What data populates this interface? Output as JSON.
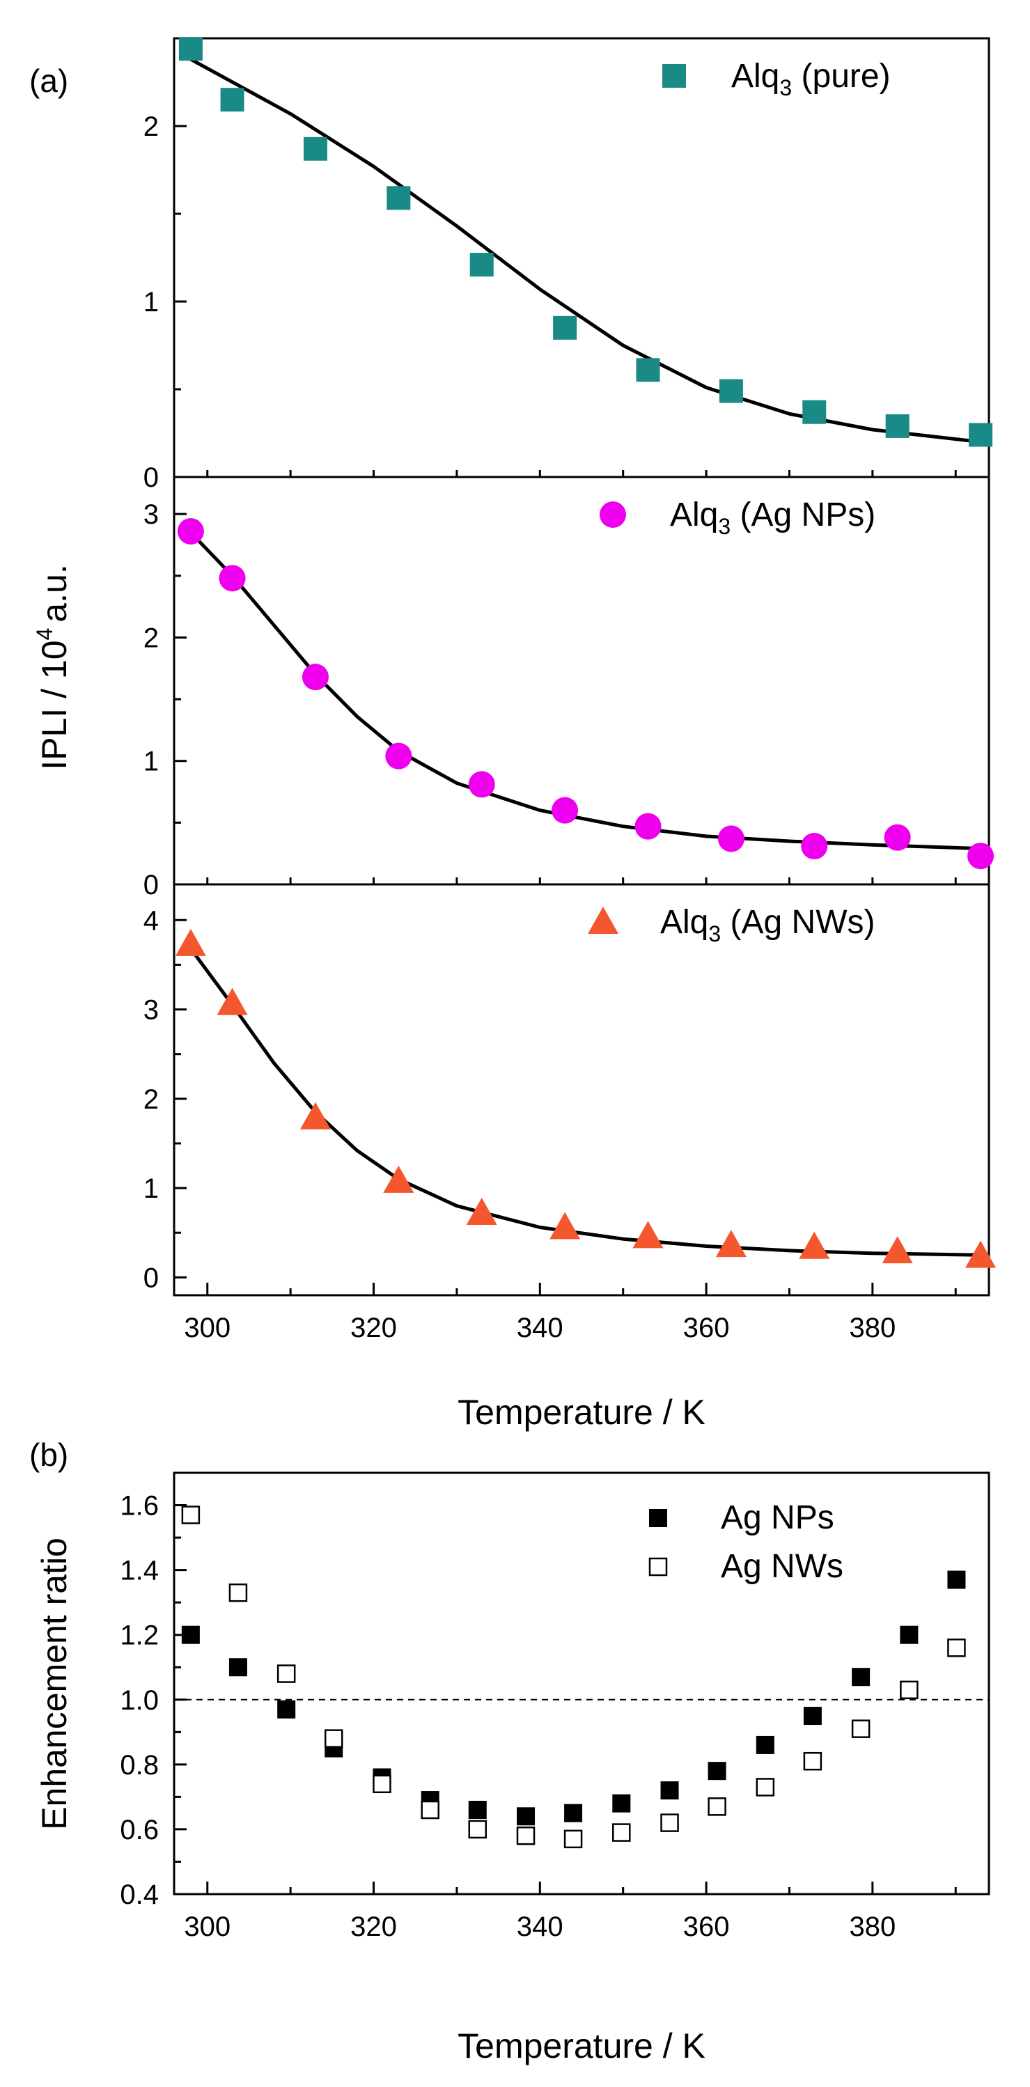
{
  "chart_data": [
    {
      "type": "scatter",
      "panel_label": "(a)",
      "xlabel": "Temperature / K",
      "ylabel_main": "IPLI / 10",
      "ylabel_sup": "4",
      "ylabel_unit": "a.u.",
      "xlim": [
        296,
        394
      ],
      "xticks": [
        300,
        320,
        340,
        360,
        380
      ],
      "subplots": [
        {
          "id": "pure",
          "legend_main": "Alq",
          "legend_sub": "3",
          "legend_suffix": " (pure)",
          "marker": "square",
          "color": "#1a8a86",
          "ylim": [
            0,
            2.5
          ],
          "yticks": [
            0,
            1,
            2
          ],
          "x": [
            298,
            303,
            313,
            323,
            333,
            343,
            353,
            363,
            373,
            383,
            393
          ],
          "y": [
            2.44,
            2.15,
            1.87,
            1.59,
            1.21,
            0.85,
            0.61,
            0.49,
            0.37,
            0.29,
            0.24
          ],
          "fit": [
            [
              298,
              2.38
            ],
            [
              310,
              2.07
            ],
            [
              320,
              1.77
            ],
            [
              330,
              1.43
            ],
            [
              340,
              1.07
            ],
            [
              350,
              0.75
            ],
            [
              360,
              0.51
            ],
            [
              370,
              0.36
            ],
            [
              380,
              0.27
            ],
            [
              393,
              0.2
            ]
          ]
        },
        {
          "id": "np",
          "legend_main": "Alq",
          "legend_sub": "3",
          "legend_suffix": " (Ag NPs)",
          "marker": "circle",
          "color": "#ee00ee",
          "ylim": [
            0,
            3.3
          ],
          "yticks": [
            0,
            1,
            2,
            3
          ],
          "x": [
            298,
            303,
            313,
            323,
            333,
            343,
            353,
            363,
            373,
            383,
            393
          ],
          "y": [
            2.86,
            2.48,
            1.68,
            1.04,
            0.81,
            0.6,
            0.47,
            0.37,
            0.31,
            0.38,
            0.23
          ],
          "fit": [
            [
              298,
              2.85
            ],
            [
              303,
              2.5
            ],
            [
              308,
              2.1
            ],
            [
              313,
              1.7
            ],
            [
              318,
              1.36
            ],
            [
              323,
              1.08
            ],
            [
              330,
              0.82
            ],
            [
              340,
              0.6
            ],
            [
              350,
              0.47
            ],
            [
              360,
              0.39
            ],
            [
              370,
              0.35
            ],
            [
              380,
              0.32
            ],
            [
              393,
              0.29
            ]
          ]
        },
        {
          "id": "nw",
          "legend_main": "Alq",
          "legend_sub": "3",
          "legend_suffix": " (Ag NWs)",
          "marker": "triangle",
          "color": "#f4572e",
          "ylim": [
            -0.2,
            4.4
          ],
          "yticks": [
            0,
            1,
            2,
            3,
            4
          ],
          "x": [
            298,
            303,
            313,
            323,
            333,
            343,
            353,
            363,
            373,
            383,
            393
          ],
          "y": [
            3.73,
            3.07,
            1.79,
            1.08,
            0.72,
            0.56,
            0.46,
            0.36,
            0.34,
            0.29,
            0.24
          ],
          "fit": [
            [
              298,
              3.68
            ],
            [
              303,
              3.05
            ],
            [
              308,
              2.4
            ],
            [
              313,
              1.85
            ],
            [
              318,
              1.42
            ],
            [
              323,
              1.1
            ],
            [
              330,
              0.8
            ],
            [
              340,
              0.56
            ],
            [
              350,
              0.43
            ],
            [
              360,
              0.35
            ],
            [
              370,
              0.3
            ],
            [
              380,
              0.27
            ],
            [
              393,
              0.25
            ]
          ]
        }
      ]
    },
    {
      "type": "scatter",
      "panel_label": "(b)",
      "xlabel": "Temperature / K",
      "ylabel": "Enhancement ratio",
      "xlim": [
        296,
        394
      ],
      "xticks": [
        300,
        320,
        340,
        360,
        380
      ],
      "ylim": [
        0.4,
        1.7
      ],
      "yticks": [
        "0.4",
        "0.6",
        "0.8",
        "1.0",
        "1.2",
        "1.4",
        "1.6"
      ],
      "reference_line": 1.0,
      "series": [
        {
          "name": "Ag NPs",
          "marker": "filled-square",
          "x": [
            298,
            303.7,
            309.5,
            315.2,
            321,
            326.8,
            332.5,
            338.3,
            344,
            349.8,
            355.6,
            361.3,
            367.1,
            372.8,
            378.6,
            384.4,
            390.1
          ],
          "y": [
            1.2,
            1.1,
            0.97,
            0.85,
            0.76,
            0.69,
            0.66,
            0.64,
            0.65,
            0.68,
            0.72,
            0.78,
            0.86,
            0.95,
            1.07,
            1.2,
            1.37
          ]
        },
        {
          "name": "Ag NWs",
          "marker": "open-square",
          "x": [
            298,
            303.7,
            309.5,
            315.2,
            321,
            326.8,
            332.5,
            338.3,
            344,
            349.8,
            355.6,
            361.3,
            367.1,
            372.8,
            378.6,
            384.4,
            390.1
          ],
          "y": [
            1.57,
            1.33,
            1.08,
            0.88,
            0.74,
            0.66,
            0.6,
            0.58,
            0.57,
            0.59,
            0.62,
            0.67,
            0.73,
            0.81,
            0.91,
            1.03,
            1.16
          ]
        }
      ]
    }
  ]
}
